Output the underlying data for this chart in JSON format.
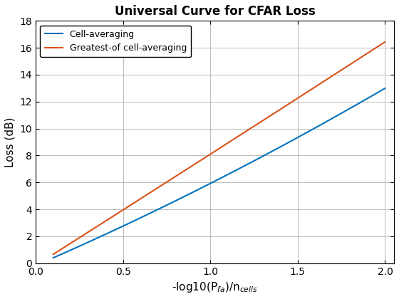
{
  "title": "Universal Curve for CFAR Loss",
  "xlabel": "-log10(P$_{fa}$)/n$_{cells}$",
  "ylabel": "Loss (dB)",
  "xlim": [
    0,
    2.05
  ],
  "ylim": [
    0,
    18
  ],
  "xticks": [
    0,
    0.5,
    1,
    1.5,
    2
  ],
  "yticks": [
    0,
    2,
    4,
    6,
    8,
    10,
    12,
    14,
    16,
    18
  ],
  "x_start": 0.1,
  "x_end": 2.0,
  "line1_color": "#0072BD",
  "line2_color": "#D95319",
  "line1_label": "Cell-averaging",
  "line2_label": "Greatest-of cell-averaging",
  "line_width": 1.5,
  "background_color": "#ffffff",
  "grid_color": "#b0b0b0",
  "x_pts_ca": [
    0.1,
    0.5,
    1.0,
    1.5,
    2.0
  ],
  "y_pts_ca": [
    0.55,
    2.45,
    6.0,
    9.5,
    12.9
  ],
  "x_pts_go": [
    0.1,
    0.5,
    1.0,
    1.5,
    2.0
  ],
  "y_pts_go": [
    0.75,
    3.75,
    8.2,
    12.3,
    16.4
  ]
}
